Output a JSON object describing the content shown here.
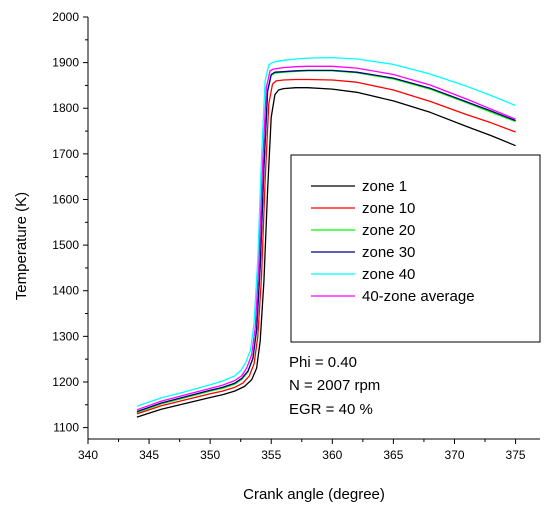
{
  "chart_data": {
    "type": "line",
    "xlabel": "Crank angle (degree)",
    "ylabel": "Temperature (K)",
    "xlim": [
      340,
      377
    ],
    "ylim": [
      1075,
      2000
    ],
    "xticks": [
      340,
      345,
      350,
      355,
      360,
      365,
      370,
      375
    ],
    "yticks": [
      1100,
      1200,
      1300,
      1400,
      1500,
      1600,
      1700,
      1800,
      1900,
      2000
    ],
    "grid": false,
    "legend_position": "right-middle",
    "series": [
      {
        "name": "zone 1",
        "color": "#000000",
        "x": [
          344,
          346,
          348,
          350,
          351,
          352,
          352.8,
          353.4,
          353.8,
          354.1,
          354.4,
          354.7,
          355.0,
          355.3,
          355.6,
          356,
          357,
          358,
          360,
          362,
          365,
          368,
          371,
          373,
          375
        ],
        "y": [
          1123,
          1140,
          1153,
          1166,
          1172,
          1180,
          1190,
          1205,
          1230,
          1290,
          1420,
          1620,
          1780,
          1830,
          1840,
          1843,
          1845,
          1845,
          1842,
          1835,
          1816,
          1791,
          1760,
          1740,
          1718
        ]
      },
      {
        "name": "zone 10",
        "color": "#ff0000",
        "x": [
          344,
          346,
          348,
          350,
          351,
          352,
          352.7,
          353.2,
          353.6,
          353.9,
          354.2,
          354.5,
          354.8,
          355.1,
          355.4,
          356,
          357,
          358,
          360,
          362,
          365,
          368,
          371,
          373,
          375
        ],
        "y": [
          1130,
          1148,
          1161,
          1174,
          1180,
          1188,
          1198,
          1213,
          1240,
          1300,
          1430,
          1640,
          1810,
          1853,
          1860,
          1862,
          1863,
          1863,
          1862,
          1857,
          1840,
          1815,
          1786,
          1768,
          1748
        ]
      },
      {
        "name": "zone 20",
        "color": "#00ff00",
        "x": [
          344,
          346,
          348,
          350,
          351,
          352,
          352.6,
          353.1,
          353.5,
          353.8,
          354.1,
          354.4,
          354.7,
          355.0,
          355.3,
          356,
          357,
          358,
          360,
          362,
          365,
          368,
          371,
          373,
          375
        ],
        "y": [
          1133,
          1152,
          1166,
          1180,
          1186,
          1195,
          1206,
          1222,
          1250,
          1312,
          1450,
          1665,
          1835,
          1872,
          1877,
          1879,
          1881,
          1882,
          1882,
          1878,
          1864,
          1842,
          1812,
          1791,
          1771
        ]
      },
      {
        "name": "zone 30",
        "color": "#000080",
        "x": [
          344,
          346,
          348,
          350,
          351,
          352,
          352.6,
          353.1,
          353.5,
          353.8,
          354.1,
          354.4,
          354.7,
          355.0,
          355.3,
          356,
          357,
          358,
          360,
          362,
          365,
          368,
          371,
          373,
          375
        ],
        "y": [
          1135,
          1154,
          1168,
          1182,
          1188,
          1197,
          1208,
          1224,
          1252,
          1315,
          1455,
          1670,
          1838,
          1874,
          1879,
          1880,
          1882,
          1883,
          1883,
          1879,
          1866,
          1844,
          1814,
          1794,
          1773
        ]
      },
      {
        "name": "zone 40",
        "color": "#00ffff",
        "x": [
          344,
          346,
          348,
          350,
          351,
          352,
          352.5,
          352.9,
          353.3,
          353.6,
          353.9,
          354.2,
          354.5,
          354.8,
          355.1,
          355.5,
          356,
          357,
          358,
          360,
          362,
          365,
          368,
          371,
          373,
          375
        ],
        "y": [
          1147,
          1165,
          1179,
          1194,
          1202,
          1213,
          1225,
          1242,
          1270,
          1330,
          1470,
          1690,
          1860,
          1895,
          1900,
          1903,
          1905,
          1908,
          1910,
          1911,
          1908,
          1896,
          1875,
          1848,
          1828,
          1806
        ]
      },
      {
        "name": "40-zone average",
        "color": "#ff00ff",
        "x": [
          344,
          346,
          348,
          350,
          351,
          352,
          352.6,
          353.0,
          353.4,
          353.7,
          354.0,
          354.3,
          354.6,
          354.9,
          355.2,
          356,
          357,
          358,
          360,
          362,
          365,
          368,
          371,
          373,
          375
        ],
        "y": [
          1139,
          1158,
          1172,
          1186,
          1193,
          1203,
          1214,
          1231,
          1260,
          1322,
          1462,
          1678,
          1846,
          1882,
          1886,
          1889,
          1891,
          1892,
          1892,
          1888,
          1874,
          1851,
          1820,
          1798,
          1776
        ]
      }
    ],
    "annotations": [
      "Phi = 0.40",
      "N = 2007 rpm",
      "EGR = 40 %"
    ]
  }
}
